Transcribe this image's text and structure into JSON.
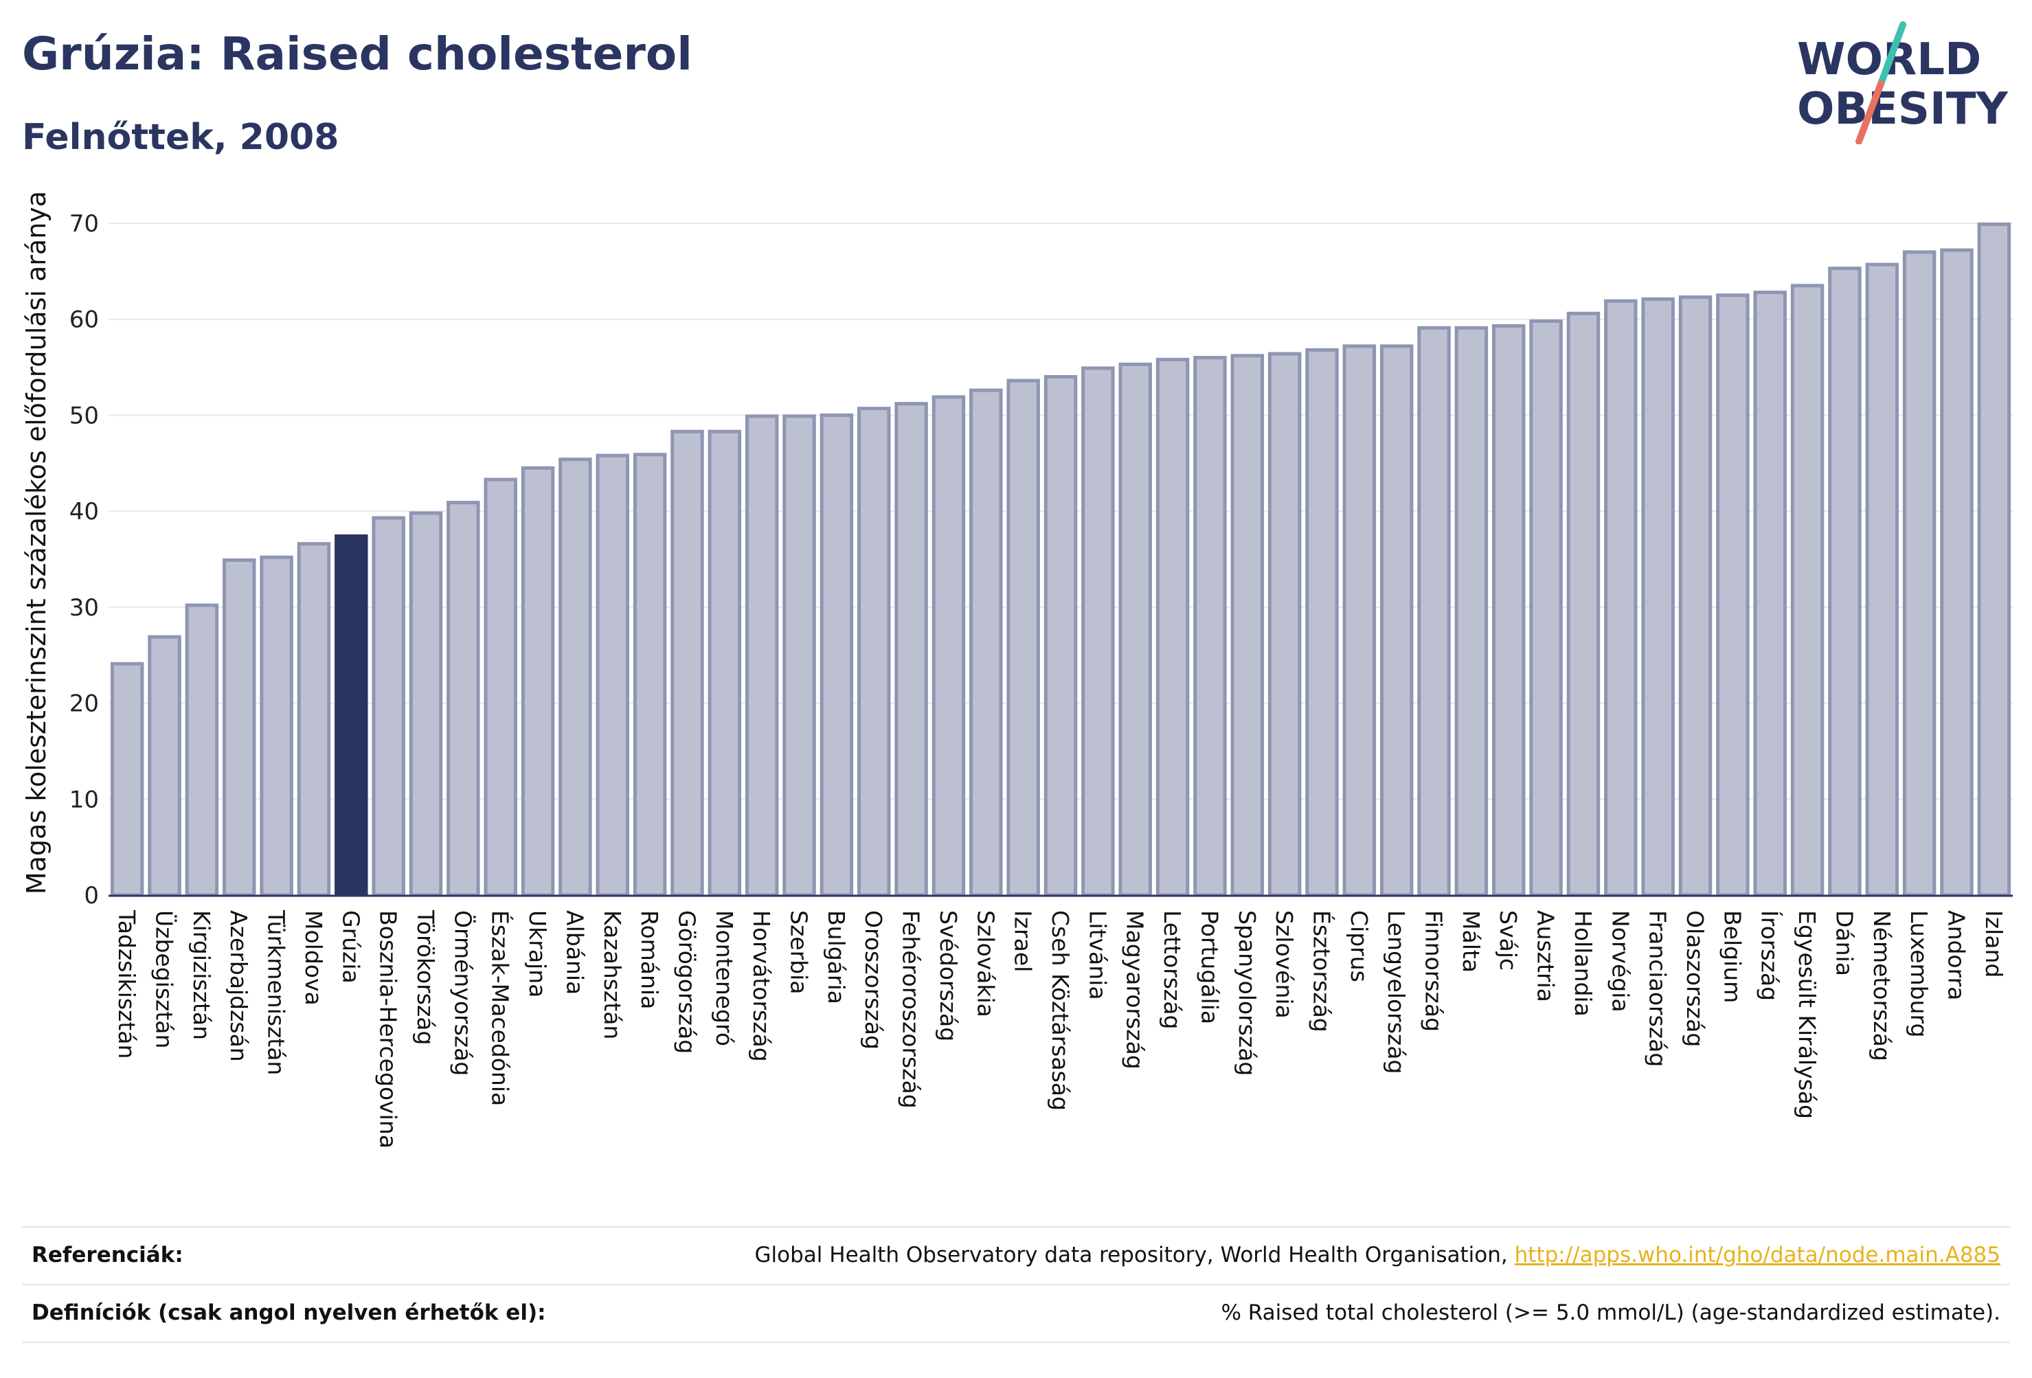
{
  "header": {
    "title": "Grúzia: Raised cholesterol",
    "subtitle": "Felnőttek, 2008"
  },
  "logo": {
    "line1": "WORLD",
    "line2": "OBESITY",
    "text_color": "#2b3561",
    "slash_teal": "#3fbfb0",
    "slash_coral": "#e8715f"
  },
  "colors": {
    "bar_fill": "#bcc0d0",
    "bar_stroke": "#8f96b3",
    "highlight_fill": "#2b3561",
    "grid": "#e6e7ec",
    "axis": "#2b3561"
  },
  "chart_data": {
    "type": "bar",
    "ylabel": "Magas koleszterinszint százalékos előfordulási aránya",
    "ylim": [
      0,
      70
    ],
    "yticks": [
      0,
      10,
      20,
      30,
      40,
      50,
      60,
      70
    ],
    "grid": true,
    "highlight": "Grúzia",
    "categories": [
      "Tadzsikisztán",
      "Üzbegisztán",
      "Kirgizisztán",
      "Azerbajdzsán",
      "Türkmenisztán",
      "Moldova",
      "Grúzia",
      "Bosznia-Hercegovina",
      "Törökország",
      "Örményország",
      "Észak-Macedónia",
      "Ukrajna",
      "Albánia",
      "Kazahsztán",
      "Románia",
      "Görögország",
      "Montenegró",
      "Horvátország",
      "Szerbia",
      "Bulgária",
      "Oroszország",
      "Fehéroroszország",
      "Svédország",
      "Szlovákia",
      "Izrael",
      "Cseh Köztársaság",
      "Litvánia",
      "Magyarország",
      "Lettország",
      "Portugália",
      "Spanyolország",
      "Szlovénia",
      "Észtország",
      "Ciprus",
      "Lengyelország",
      "Finnország",
      "Málta",
      "Svájc",
      "Ausztria",
      "Hollandia",
      "Norvégia",
      "Franciaország",
      "Olaszország",
      "Belgium",
      "Írország",
      "Egyesült Királyság",
      "Dánia",
      "Németország",
      "Luxemburg",
      "Andorra",
      "Izland"
    ],
    "values": [
      24.1,
      26.9,
      30.2,
      34.9,
      35.2,
      36.6,
      37.4,
      39.3,
      39.8,
      40.9,
      43.3,
      44.5,
      45.4,
      45.8,
      45.9,
      48.3,
      48.3,
      49.9,
      49.9,
      50.0,
      50.7,
      51.2,
      51.9,
      52.6,
      53.6,
      54.0,
      54.9,
      55.3,
      55.8,
      56.0,
      56.2,
      56.4,
      56.8,
      57.2,
      57.2,
      59.1,
      59.1,
      59.3,
      59.8,
      60.6,
      61.9,
      62.1,
      62.3,
      62.5,
      62.8,
      63.5,
      65.3,
      65.7,
      67.0,
      67.2,
      69.9
    ]
  },
  "footer": {
    "references_label": "Referenciák:",
    "references_text": "Global Health Observatory data repository, World Health Organisation,",
    "references_link": "http://apps.who.int/gho/data/node.main.A885",
    "definitions_label": "Definíciók (csak angol nyelven érhetők el):",
    "definitions_text": "% Raised total cholesterol (>= 5.0 mmol/L) (age-standardized estimate)."
  }
}
